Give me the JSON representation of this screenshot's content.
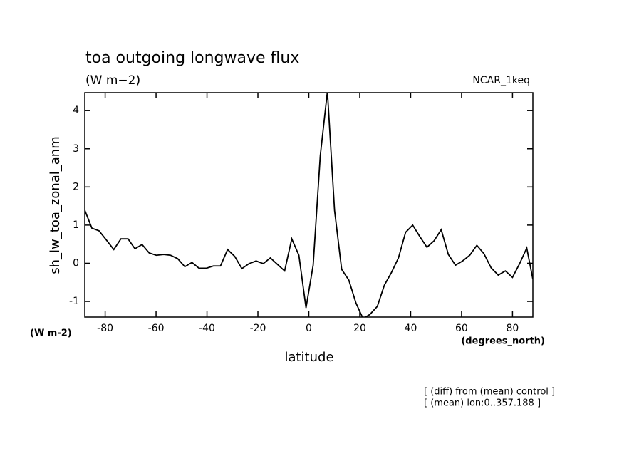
{
  "chart_data": {
    "type": "line",
    "title": "toa outgoing longwave flux",
    "subtitle": "(W m−2)",
    "run_label": "NCAR_1keq",
    "y_label": "sh_lw_toa_zonal_anm",
    "y_units": "(W m-2)",
    "x_label": "latitude",
    "x_units": "(degrees_north)",
    "notes": [
      "[ (diff) from (mean) control ]",
      "[ (mean) lon:0..357.188 ]"
    ],
    "color": "#000000",
    "x": [
      -88,
      -85.2,
      -82.4,
      -79.4,
      -76.6,
      -73.8,
      -71,
      -68.3,
      -65.5,
      -62.7,
      -59.9,
      -57,
      -54.3,
      -51.5,
      -48.7,
      -45.9,
      -43.1,
      -40.3,
      -37.5,
      -34.7,
      -31.9,
      -29.1,
      -26.3,
      -23.5,
      -20.7,
      -17.9,
      -15.1,
      -12.3,
      -9.5,
      -6.7,
      -3.9,
      -1.1,
      1.7,
      4.5,
      7.3,
      10.1,
      12.9,
      15.7,
      18.5,
      21.3,
      24,
      26.9,
      29.7,
      32.4,
      35.2,
      38,
      40.8,
      43.6,
      46.4,
      49.2,
      52,
      54.8,
      57.6,
      60.4,
      63.2,
      66,
      68.8,
      71.6,
      74.4,
      77.2,
      80,
      82.8,
      85.6,
      88
    ],
    "values": [
      1.39,
      0.92,
      0.85,
      0.6,
      0.36,
      0.64,
      0.64,
      0.38,
      0.49,
      0.27,
      0.21,
      0.23,
      0.21,
      0.12,
      -0.09,
      0.02,
      -0.13,
      -0.13,
      -0.07,
      -0.07,
      0.36,
      0.18,
      -0.14,
      -0.01,
      0.06,
      -0.01,
      0.14,
      -0.03,
      -0.2,
      0.64,
      0.21,
      -1.17,
      -0.05,
      2.82,
      4.5,
      1.39,
      -0.16,
      -0.44,
      -1.04,
      -1.45,
      -1.34,
      -1.13,
      -0.57,
      -0.25,
      0.14,
      0.81,
      1.0,
      0.7,
      0.42,
      0.59,
      0.88,
      0.23,
      -0.05,
      0.06,
      0.21,
      0.47,
      0.25,
      -0.12,
      -0.31,
      -0.2,
      -0.37,
      -0.01,
      0.4,
      -0.42
    ],
    "xlim": [
      -88,
      88
    ],
    "ylim": [
      -1.41,
      4.47
    ],
    "xticks": [
      -80,
      -60,
      -40,
      -20,
      0,
      20,
      40,
      60,
      80
    ],
    "yticks": [
      -1,
      0,
      1,
      2,
      3,
      4
    ]
  }
}
